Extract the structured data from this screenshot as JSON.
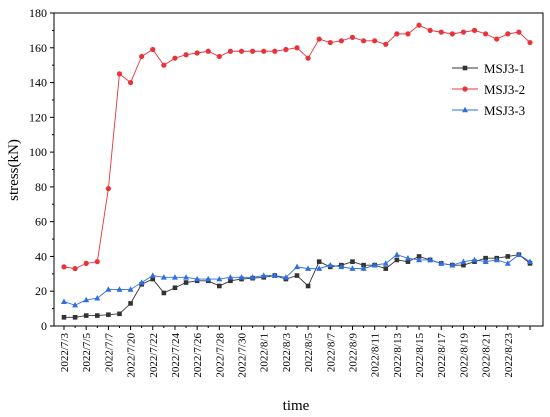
{
  "chart_data": {
    "type": "line",
    "xlabel": "time",
    "ylabel": "stress(kN)",
    "ylim": [
      0,
      180
    ],
    "yticks": [
      0,
      20,
      40,
      60,
      80,
      100,
      120,
      140,
      160,
      180
    ],
    "grid": false,
    "legend_position": "top-right",
    "x_tick_labels": [
      "2022/7/3",
      "2022/7/5",
      "2022/7/7",
      "2022/7/20",
      "2022/7/22",
      "2022/7/24",
      "2022/7/26",
      "2022/7/28",
      "2022/7/30",
      "2022/8/1",
      "2022/8/3",
      "2022/8/5",
      "2022/8/7",
      "2022/8/9",
      "2022/8/11",
      "2022/8/13",
      "2022/8/15",
      "2022/8/17",
      "2022/8/19",
      "2022/8/21",
      "2022/8/23"
    ],
    "series": [
      {
        "name": "MSJ3-1",
        "color": "#333333",
        "marker": "square",
        "values": [
          5,
          5,
          6,
          6,
          6.5,
          7,
          13,
          24,
          27,
          19,
          22,
          25,
          26,
          26,
          23,
          26,
          27,
          27.5,
          28,
          29,
          27,
          29,
          23,
          37,
          34,
          35,
          37,
          35,
          35,
          33,
          38,
          37,
          40,
          38,
          36,
          35,
          35,
          37,
          39,
          39,
          40,
          41,
          36
        ]
      },
      {
        "name": "MSJ3-2",
        "color": "#e8333b",
        "marker": "circle",
        "values": [
          34,
          33,
          36,
          37,
          79,
          145,
          140,
          155,
          159,
          150,
          154,
          156,
          157,
          158,
          155,
          158,
          158,
          158,
          158,
          158,
          159,
          160,
          154,
          165,
          163,
          164,
          166,
          164,
          164,
          162,
          168,
          168,
          173,
          170,
          169,
          168,
          169,
          170,
          168,
          165,
          168,
          169,
          163
        ]
      },
      {
        "name": "MSJ3-3",
        "color": "#2f6fe0",
        "marker": "triangle",
        "values": [
          14,
          12,
          15,
          16,
          21,
          21,
          21,
          25,
          29,
          28,
          28,
          28,
          27,
          27,
          27,
          28,
          28,
          28,
          29,
          29,
          28,
          34,
          33,
          33,
          35,
          34,
          33,
          33,
          35,
          36,
          41,
          39,
          38,
          38,
          36,
          35,
          37,
          38,
          37,
          38,
          36,
          41,
          37
        ]
      }
    ]
  }
}
